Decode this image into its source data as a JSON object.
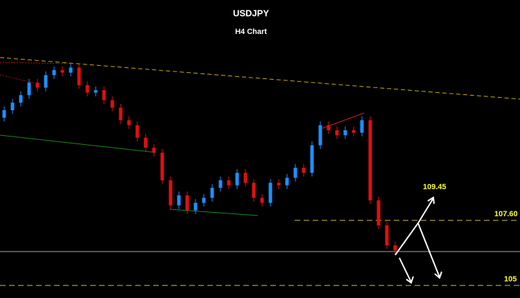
{
  "chart_data": {
    "type": "candlestick",
    "title": "USDJPY",
    "subtitle": "H4 Chart",
    "ylim": [
      104.5,
      116.4
    ],
    "up_color": "#1e90ff",
    "down_color": "#e01010",
    "open": [
      111.7,
      112.0,
      112.3,
      112.6,
      113.1,
      112.9,
      113.4,
      113.6,
      113.5,
      113.7,
      113.0,
      112.7,
      112.8,
      112.4,
      112.1,
      111.6,
      111.4,
      110.9,
      110.5,
      110.3,
      109.2,
      108.2,
      108.6,
      108.0,
      108.3,
      108.5,
      108.9,
      109.2,
      109.0,
      109.5,
      109.1,
      108.5,
      108.3,
      109.1,
      109.0,
      109.3,
      109.7,
      109.5,
      110.6,
      111.4,
      111.2,
      111.0,
      111.2,
      111.1,
      111.6,
      108.4,
      107.4,
      106.6
    ],
    "high": [
      112.15,
      112.45,
      112.75,
      113.25,
      113.25,
      113.55,
      113.75,
      113.75,
      113.85,
      113.85,
      113.15,
      112.95,
      112.95,
      112.55,
      112.25,
      111.75,
      111.55,
      111.05,
      110.65,
      110.45,
      109.35,
      108.75,
      108.75,
      108.45,
      108.65,
      109.05,
      109.35,
      109.35,
      109.65,
      109.65,
      109.25,
      108.65,
      109.25,
      109.25,
      109.45,
      109.85,
      109.85,
      110.75,
      111.55,
      111.55,
      111.35,
      111.35,
      111.35,
      111.75,
      111.75,
      108.55,
      107.55,
      106.75
    ],
    "low": [
      111.55,
      111.85,
      112.15,
      112.45,
      112.75,
      112.75,
      113.25,
      113.35,
      113.35,
      112.85,
      112.55,
      112.55,
      112.25,
      111.95,
      111.45,
      111.25,
      110.75,
      110.35,
      110.15,
      109.05,
      108.05,
      108.05,
      107.85,
      107.85,
      108.15,
      108.35,
      108.75,
      108.85,
      108.85,
      108.95,
      108.35,
      108.15,
      108.15,
      108.85,
      108.85,
      109.15,
      109.35,
      109.35,
      110.45,
      111.05,
      110.85,
      110.85,
      110.95,
      110.95,
      108.25,
      107.25,
      106.45,
      106.25
    ],
    "close": [
      112.0,
      112.3,
      112.6,
      113.1,
      112.9,
      113.4,
      113.6,
      113.5,
      113.7,
      113.0,
      112.7,
      112.8,
      112.4,
      112.1,
      111.6,
      111.4,
      110.9,
      110.5,
      110.3,
      109.2,
      108.2,
      108.6,
      108.0,
      108.3,
      108.5,
      108.9,
      109.2,
      109.0,
      109.5,
      109.1,
      108.5,
      108.3,
      109.1,
      109.0,
      109.3,
      109.7,
      109.5,
      110.6,
      111.4,
      111.2,
      111.0,
      111.2,
      111.1,
      111.6,
      108.4,
      107.4,
      106.6,
      106.4
    ],
    "levels": [
      {
        "value": 107.6,
        "label": "107.60"
      },
      {
        "value": 105,
        "label": "105"
      }
    ],
    "level_color": "#d4c84a",
    "annotations": [
      "109.45"
    ]
  }
}
